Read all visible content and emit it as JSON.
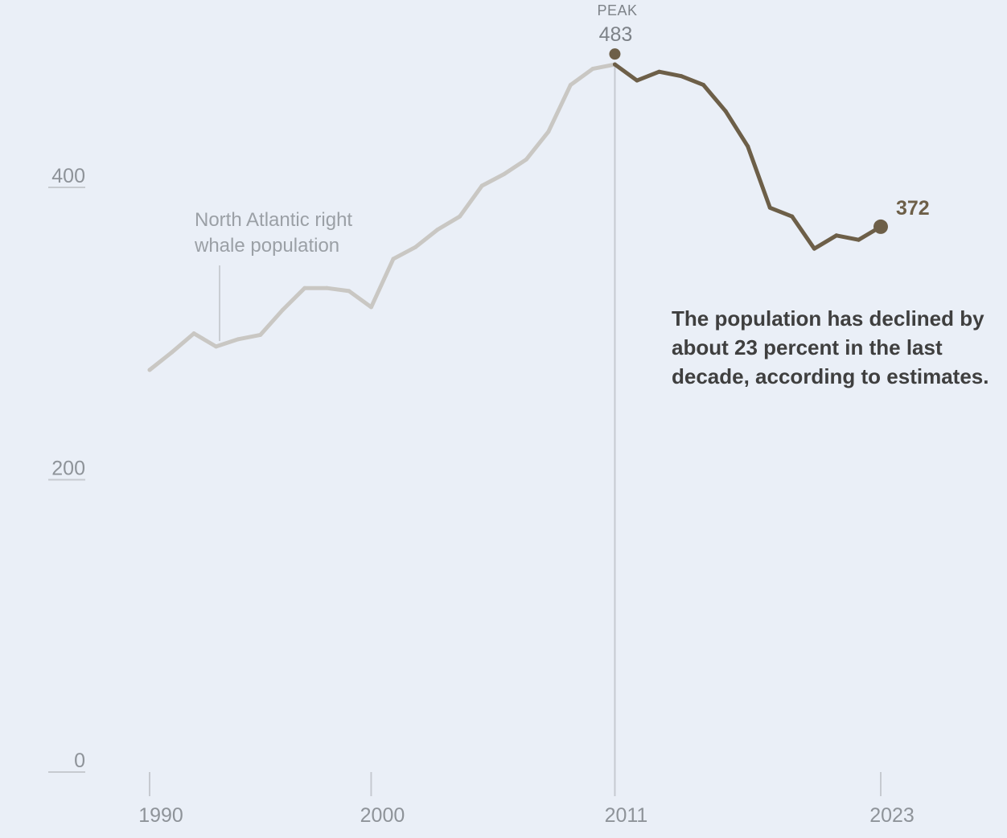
{
  "colors": {
    "background": "#eaeff7",
    "early_line": "#c9c7c3",
    "recent_line": "#6d5f48",
    "axis": "#c6cad0",
    "tick_text": "#8e9399",
    "annotation_text": "#3f3f3f"
  },
  "chart_data": {
    "type": "line",
    "title": "",
    "xlabel": "",
    "ylabel": "",
    "ylim": [
      0,
      500
    ],
    "xlim": [
      1990,
      2023
    ],
    "grid": false,
    "y_ticks": [
      {
        "value": 0,
        "label": "0"
      },
      {
        "value": 200,
        "label": "200"
      },
      {
        "value": 400,
        "label": "400"
      }
    ],
    "x_ticks": [
      {
        "value": 1990,
        "label": "1990"
      },
      {
        "value": 2000,
        "label": "2000"
      },
      {
        "value": 2011,
        "label": "2011"
      },
      {
        "value": 2023,
        "label": "2023"
      }
    ],
    "series": [
      {
        "name": "North Atlantic right whale population",
        "x": [
          1990,
          1991,
          1992,
          1993,
          1994,
          1995,
          1996,
          1997,
          1998,
          1999,
          2000,
          2001,
          2002,
          2003,
          2004,
          2005,
          2006,
          2007,
          2008,
          2009,
          2010,
          2011,
          2012,
          2013,
          2014,
          2015,
          2016,
          2017,
          2018,
          2019,
          2020,
          2021,
          2022,
          2023
        ],
        "y": [
          274,
          286,
          299,
          290,
          295,
          298,
          315,
          330,
          330,
          328,
          317,
          350,
          358,
          370,
          379,
          400,
          408,
          418,
          437,
          469,
          480,
          483,
          472,
          478,
          475,
          469,
          451,
          427,
          385,
          379,
          357,
          366,
          363,
          372
        ]
      }
    ],
    "highlight_start_year": 2011,
    "annotations": {
      "series_label_line1": "North Atlantic right",
      "series_label_line2": "whale population",
      "peak_word": "PEAK",
      "peak_value": "483",
      "end_value": "372",
      "note_line1": "The population has declined by",
      "note_line2": "about 23 percent in the last",
      "note_line3": "decade, according to estimates."
    }
  }
}
